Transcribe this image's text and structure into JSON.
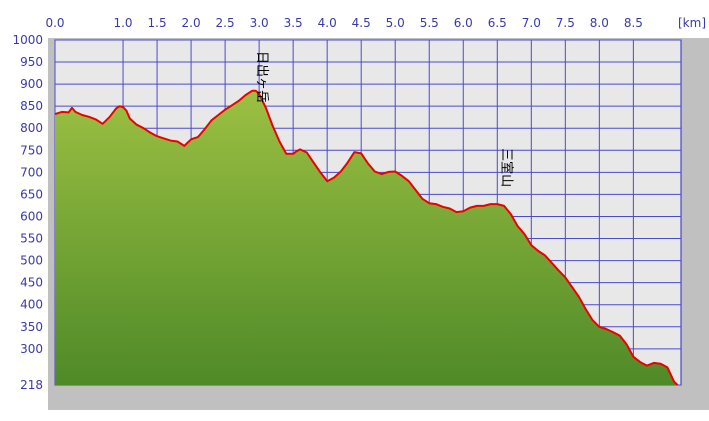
{
  "chart_data": {
    "type": "area",
    "title": "",
    "xlabel": "",
    "ylabel": "",
    "x_unit_label": "[km]",
    "xlim": [
      0,
      9.2
    ],
    "ylim": [
      218,
      1000
    ],
    "x_ticks": [
      "0.0",
      "1.0",
      "1.5",
      "2.0",
      "2.5",
      "3.0",
      "3.5",
      "4.0",
      "4.5",
      "5.0",
      "5.5",
      "6.0",
      "6.5",
      "7.0",
      "7.5",
      "8.0",
      "8.5"
    ],
    "x_tick_values": [
      0.0,
      1.0,
      1.5,
      2.0,
      2.5,
      3.0,
      3.5,
      4.0,
      4.5,
      5.0,
      5.5,
      6.0,
      6.5,
      7.0,
      7.5,
      8.0,
      8.5
    ],
    "y_ticks": [
      "1000",
      "950",
      "900",
      "850",
      "800",
      "750",
      "700",
      "650",
      "600",
      "550",
      "500",
      "450",
      "400",
      "350",
      "300",
      "218"
    ],
    "y_tick_values": [
      1000,
      950,
      900,
      850,
      800,
      750,
      700,
      650,
      600,
      550,
      500,
      450,
      400,
      350,
      300,
      218
    ],
    "grid": true,
    "colors": {
      "line": "#ee0000",
      "fill_top": "#9cc042",
      "fill_bottom": "#4f8a28",
      "grid": "#4a4ad0",
      "plot_bg": "#e8e8e8",
      "frame_bg": "#c0c0c0",
      "tick_text": "#3a3aa8"
    },
    "annotations": [
      {
        "text": "日出ヶ岳",
        "x": 2.98,
        "y": 975
      },
      {
        "text": "三室山",
        "x": 6.58,
        "y": 755
      }
    ],
    "series": [
      {
        "x": [
          0.0,
          0.1,
          0.2,
          0.25,
          0.3,
          0.4,
          0.5,
          0.6,
          0.7,
          0.8,
          0.9,
          0.95,
          1.0,
          1.05,
          1.1,
          1.2,
          1.3,
          1.4,
          1.5,
          1.6,
          1.7,
          1.8,
          1.9,
          2.0,
          2.1,
          2.2,
          2.3,
          2.4,
          2.5,
          2.6,
          2.7,
          2.8,
          2.9,
          2.95,
          3.0,
          3.1,
          3.2,
          3.3,
          3.4,
          3.5,
          3.55,
          3.6,
          3.7,
          3.8,
          3.9,
          4.0,
          4.1,
          4.2,
          4.3,
          4.4,
          4.5,
          4.6,
          4.7,
          4.8,
          4.9,
          5.0,
          5.1,
          5.2,
          5.3,
          5.4,
          5.5,
          5.6,
          5.7,
          5.8,
          5.9,
          6.0,
          6.1,
          6.2,
          6.3,
          6.4,
          6.5,
          6.6,
          6.7,
          6.8,
          6.9,
          7.0,
          7.1,
          7.2,
          7.3,
          7.4,
          7.5,
          7.6,
          7.7,
          7.8,
          7.9,
          8.0,
          8.1,
          8.2,
          8.3,
          8.4,
          8.5,
          8.6,
          8.7,
          8.8,
          8.9,
          9.0,
          9.1,
          9.15
        ],
        "y": [
          832,
          837,
          836,
          846,
          837,
          830,
          826,
          820,
          810,
          825,
          845,
          850,
          848,
          840,
          822,
          808,
          800,
          790,
          782,
          777,
          772,
          770,
          760,
          775,
          780,
          798,
          818,
          830,
          842,
          852,
          862,
          875,
          885,
          885,
          878,
          846,
          805,
          770,
          742,
          742,
          748,
          752,
          745,
          722,
          700,
          680,
          688,
          702,
          722,
          746,
          743,
          720,
          702,
          696,
          701,
          702,
          692,
          680,
          660,
          640,
          630,
          628,
          622,
          618,
          610,
          612,
          620,
          624,
          624,
          628,
          628,
          624,
          605,
          578,
          560,
          535,
          522,
          512,
          495,
          478,
          462,
          440,
          418,
          390,
          365,
          350,
          345,
          338,
          330,
          310,
          282,
          270,
          262,
          268,
          266,
          258,
          225,
          218
        ]
      }
    ]
  }
}
